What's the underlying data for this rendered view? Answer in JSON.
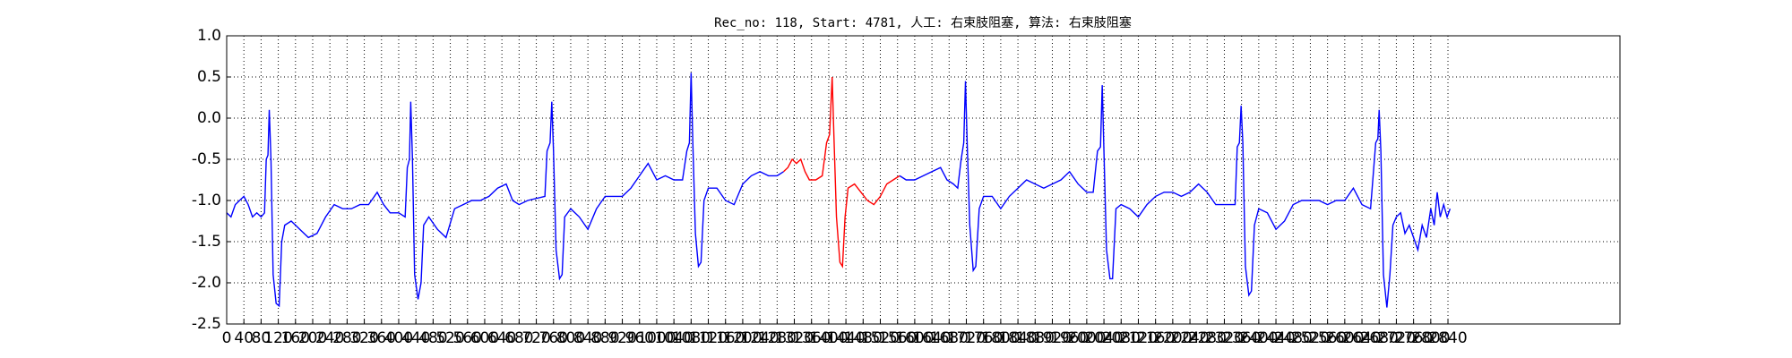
{
  "chart_data": {
    "type": "line",
    "title": "Rec_no: 118, Start: 4781, 人工: 右束肢阻塞, 算法: 右束肢阻塞",
    "xlim": [
      0,
      3240
    ],
    "xticks": [
      0,
      40,
      80,
      120,
      160,
      200,
      240,
      280,
      320,
      360,
      400,
      440,
      480,
      520,
      560,
      600,
      640,
      680,
      720,
      760,
      800,
      840,
      880,
      920,
      960,
      1000,
      1040,
      1080,
      1120,
      1160,
      1200,
      1240,
      1280,
      1320,
      1360,
      1400,
      1440,
      1480,
      1520,
      1560,
      1600,
      1640,
      1680,
      1720,
      1760,
      1800,
      1840,
      1880,
      1920,
      1960,
      2000,
      2040,
      2080,
      2120,
      2160,
      2200,
      2240,
      2280,
      2320,
      2360,
      2400,
      2440,
      2480,
      2520,
      2560,
      2600,
      2640,
      2680,
      2720,
      2760,
      2800,
      2840
    ],
    "ylim": [
      -2.5,
      1.0
    ],
    "yticks": [
      {
        "value": 1.0,
        "label": "1.0"
      },
      0.5,
      {
        "value": 0,
        "label": "0.0"
      },
      -0.5,
      {
        "value": -1.0,
        "label": "-1.0"
      },
      -1.5,
      {
        "value": -2.0,
        "label": "-2.0"
      },
      -2.5
    ],
    "grid": true,
    "series": [
      {
        "color": "#0000ff",
        "x": [
          0,
          10,
          20,
          30,
          40,
          50,
          60,
          70,
          80,
          88,
          92,
          96,
          99,
          103,
          108,
          115,
          122,
          128,
          135,
          150,
          170,
          190,
          210,
          230,
          250,
          270,
          290,
          310,
          330,
          350,
          365,
          380,
          400,
          415,
          420,
          425,
          428,
          432,
          437,
          445,
          452,
          458,
          470,
          490,
          510,
          530,
          550,
          570,
          590,
          610,
          630,
          650,
          665,
          680,
          700,
          740,
          745,
          752,
          756,
          760,
          766,
          774,
          780,
          786,
          800,
          820,
          840,
          860,
          880,
          900,
          920,
          940,
          960,
          980,
          1000,
          1020,
          1040,
          1060,
          1070,
          1076,
          1080,
          1084,
          1090,
          1097,
          1103,
          1110,
          1120,
          1140,
          1160,
          1180,
          1200,
          1220,
          1240,
          1260,
          1280,
          1295
        ],
        "values": [
          -1.15,
          -1.2,
          -1.05,
          -1.0,
          -0.95,
          -1.05,
          -1.2,
          -1.15,
          -1.2,
          -1.15,
          -0.5,
          -0.45,
          0.1,
          -0.5,
          -1.9,
          -2.25,
          -2.28,
          -1.5,
          -1.3,
          -1.25,
          -1.35,
          -1.45,
          -1.4,
          -1.2,
          -1.05,
          -1.1,
          -1.1,
          -1.05,
          -1.05,
          -0.9,
          -1.05,
          -1.15,
          -1.15,
          -1.2,
          -0.6,
          -0.5,
          0.2,
          -0.5,
          -1.9,
          -2.2,
          -2.0,
          -1.3,
          -1.2,
          -1.35,
          -1.45,
          -1.1,
          -1.05,
          -1.0,
          -1.0,
          -0.95,
          -0.85,
          -0.8,
          -1.0,
          -1.05,
          -1.0,
          -0.95,
          -0.4,
          -0.3,
          0.2,
          -0.4,
          -1.6,
          -1.95,
          -1.9,
          -1.2,
          -1.1,
          -1.2,
          -1.35,
          -1.1,
          -0.95,
          -0.95,
          -0.95,
          -0.85,
          -0.7,
          -0.55,
          -0.75,
          -0.7,
          -0.75,
          -0.75,
          -0.4,
          -0.3,
          0.55,
          -0.3,
          -1.4,
          -1.8,
          -1.75,
          -1.0,
          -0.85,
          -0.85,
          -1.0,
          -1.05,
          -0.8,
          -0.7,
          -0.65,
          -0.7,
          -0.7,
          -0.65
        ]
      },
      {
        "color": "#ff0000",
        "x": [
          1295,
          1305,
          1315,
          1325,
          1335,
          1345,
          1355,
          1370,
          1385,
          1395,
          1402,
          1408,
          1412,
          1418,
          1426,
          1432,
          1438,
          1445,
          1460,
          1475,
          1490,
          1505,
          1520,
          1535,
          1550,
          1565
        ],
        "values": [
          -0.65,
          -0.6,
          -0.5,
          -0.55,
          -0.5,
          -0.65,
          -0.75,
          -0.75,
          -0.7,
          -0.3,
          -0.2,
          0.5,
          -0.2,
          -1.2,
          -1.75,
          -1.8,
          -1.2,
          -0.85,
          -0.8,
          -0.9,
          -1.0,
          -1.05,
          -0.95,
          -0.8,
          -0.75,
          -0.7
        ]
      },
      {
        "color": "#0000ff",
        "x": [
          1565,
          1580,
          1600,
          1620,
          1640,
          1660,
          1675,
          1690,
          1700,
          1708,
          1714,
          1718,
          1722,
          1728,
          1736,
          1742,
          1750,
          1760,
          1780,
          1800,
          1820,
          1840,
          1860,
          1880,
          1900,
          1920,
          1940,
          1960,
          1980,
          2000,
          2015,
          2025,
          2032,
          2036,
          2040,
          2046,
          2054,
          2060,
          2068,
          2080,
          2100,
          2120,
          2140,
          2160,
          2180,
          2200,
          2220,
          2240,
          2260,
          2280,
          2300,
          2320,
          2345,
          2350,
          2355,
          2359,
          2363,
          2369,
          2377,
          2383,
          2390,
          2400,
          2420,
          2440,
          2460,
          2480,
          2500,
          2520,
          2540,
          2560,
          2580,
          2600,
          2620,
          2640,
          2660,
          2672,
          2677,
          2680,
          2684,
          2690,
          2698,
          2705,
          2712,
          2720,
          2730,
          2740,
          2750,
          2760,
          2770,
          2780,
          2790,
          2800,
          2808,
          2815,
          2822,
          2830,
          2838,
          2845
        ],
        "values": [
          -0.7,
          -0.75,
          -0.75,
          -0.7,
          -0.65,
          -0.6,
          -0.75,
          -0.8,
          -0.85,
          -0.5,
          -0.3,
          0.45,
          -0.3,
          -1.3,
          -1.85,
          -1.8,
          -1.1,
          -0.95,
          -0.95,
          -1.1,
          -0.95,
          -0.85,
          -0.75,
          -0.8,
          -0.85,
          -0.8,
          -0.75,
          -0.65,
          -0.8,
          -0.9,
          -0.9,
          -0.4,
          -0.35,
          0.4,
          -0.4,
          -1.6,
          -1.95,
          -1.95,
          -1.1,
          -1.05,
          -1.1,
          -1.2,
          -1.05,
          -0.95,
          -0.9,
          -0.9,
          -0.95,
          -0.9,
          -0.8,
          -0.9,
          -1.05,
          -1.05,
          -1.05,
          -0.35,
          -0.3,
          0.15,
          -0.3,
          -1.8,
          -2.15,
          -2.1,
          -1.3,
          -1.1,
          -1.15,
          -1.35,
          -1.25,
          -1.05,
          -1.0,
          -1.0,
          -1.0,
          -1.05,
          -1.0,
          -1.0,
          -0.85,
          -1.05,
          -1.1,
          -0.3,
          -0.25,
          0.1,
          -0.4,
          -1.9,
          -2.3,
          -1.9,
          -1.3,
          -1.2,
          -1.15,
          -1.4,
          -1.3,
          -1.45,
          -1.6,
          -1.3,
          -1.45,
          -1.1,
          -1.3,
          -0.9,
          -1.2,
          -1.05,
          -1.2,
          -1.1
        ]
      }
    ]
  }
}
